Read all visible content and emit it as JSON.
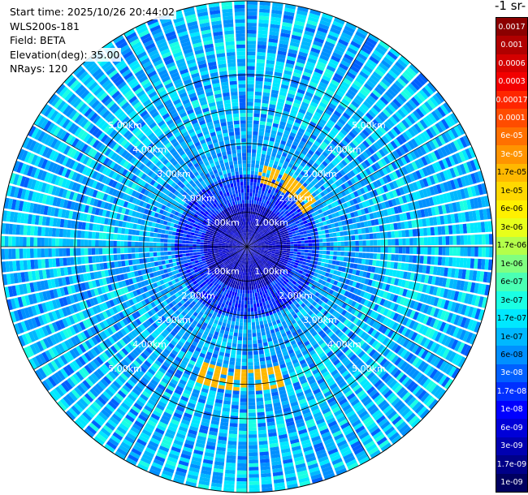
{
  "header": {
    "start_time": "Start time: 2025/10/26 20:44:02",
    "instrument": "WLS200s-181",
    "field": "Field: BETA",
    "elevation": "Elevation(deg): 35.00",
    "nrays": "NRays: 120"
  },
  "colorbar": {
    "title": "-1 sr-",
    "labels": [
      "0.0017",
      "0.001",
      "0.0006",
      "0.0003",
      "0.00017",
      "0.0001",
      "6e-05",
      "3e-05",
      "1.7e-05",
      "1e-05",
      "6e-06",
      "3e-06",
      "1.7e-06",
      "1e-06",
      "6e-07",
      "3e-07",
      "1.7e-07",
      "1e-07",
      "6e-08",
      "3e-08",
      "1.7e-08",
      "1e-08",
      "6e-09",
      "3e-09",
      "1.7e-09",
      "1e-09"
    ],
    "colors": [
      "#8b0000",
      "#b00000",
      "#d40000",
      "#f20000",
      "#ff2600",
      "#ff4c00",
      "#ff7000",
      "#ff9400",
      "#ffb800",
      "#ffd800",
      "#fff000",
      "#e8ff1a",
      "#b4ff4a",
      "#80ff80",
      "#4affb4",
      "#1affe4",
      "#00e8ff",
      "#00b8ff",
      "#0090ff",
      "#0060ff",
      "#0030ff",
      "#0000ff",
      "#0000d8",
      "#0000b0",
      "#000088",
      "#000060"
    ],
    "white_text": [
      "0.0017",
      "0.001",
      "0.0006",
      "0.0003",
      "0.00017",
      "0.0001",
      "6e-05",
      "3e-05",
      "1e-08",
      "6e-09",
      "3e-09",
      "1.7e-09",
      "1e-09",
      "1.7e-08",
      "3e-08"
    ]
  },
  "chart_data": {
    "type": "heatmap",
    "projection": "polar-ppi",
    "field": "BETA",
    "elevation_deg": 35.0,
    "n_rays": 120,
    "range_rings_km": [
      1.0,
      2.0,
      3.0,
      4.0,
      5.0
    ],
    "range_ring_labels": [
      "1.00km",
      "2.00km",
      "3.00km",
      "4.00km",
      "5.00km"
    ],
    "max_range_km": 7.1,
    "azimuth_lines_deg": [
      0,
      30,
      60,
      90,
      120,
      150,
      180,
      210,
      240,
      270,
      300,
      330
    ],
    "color_scale": "log",
    "value_range": [
      1e-09,
      0.0017
    ],
    "features": [
      {
        "description": "low-backscatter core near origin",
        "range_km": [
          0,
          1.2
        ],
        "level": "3e-09"
      },
      {
        "description": "enhanced backscatter ring",
        "range_km": [
          2.0,
          3.5
        ],
        "level": "1.7e-07"
      },
      {
        "description": "strong arc east",
        "azimuth_deg": [
          10,
          60
        ],
        "range_km": [
          1.8,
          2.4
        ],
        "level": "1.7e-05"
      },
      {
        "description": "strong arc south",
        "azimuth_deg": [
          165,
          200
        ],
        "range_km": [
          3.5,
          4.1
        ],
        "level": "1.7e-05"
      }
    ]
  }
}
